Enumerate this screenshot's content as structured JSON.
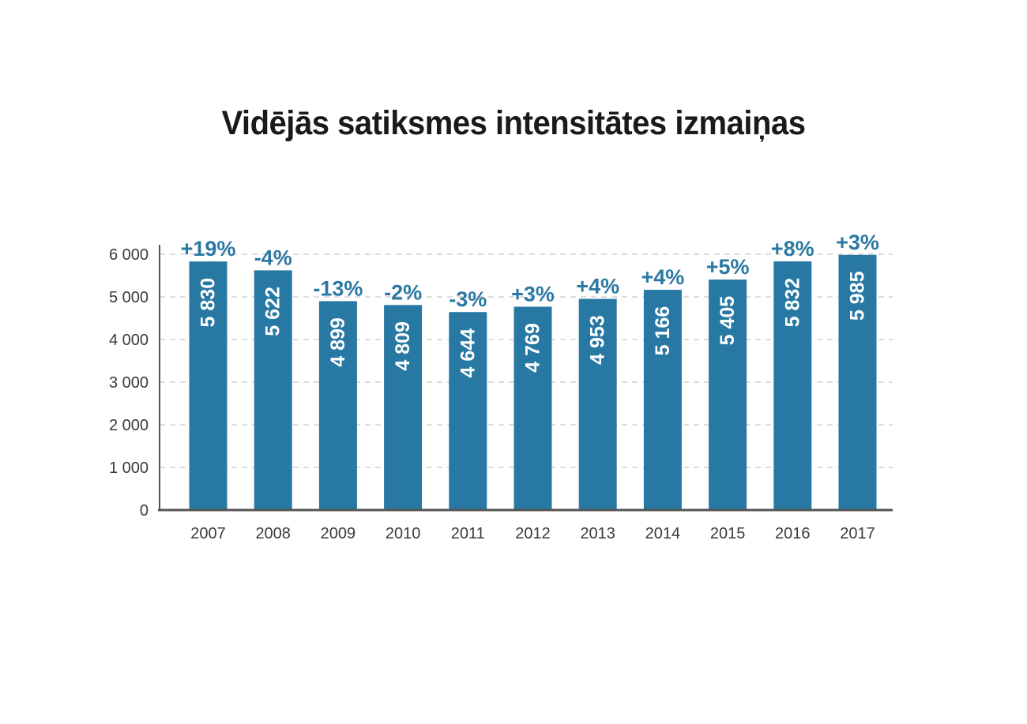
{
  "chart_data": {
    "type": "bar",
    "title": "Vidējās satiksmes intensitātes izmaiņas",
    "xlabel": "",
    "ylabel": "",
    "categories": [
      "2007",
      "2008",
      "2009",
      "2010",
      "2011",
      "2012",
      "2013",
      "2014",
      "2015",
      "2016",
      "2017"
    ],
    "values": [
      5830,
      5622,
      4899,
      4809,
      4644,
      4769,
      4953,
      5166,
      5405,
      5832,
      5985
    ],
    "value_labels": [
      "5 830",
      "5 622",
      "4 899",
      "4 809",
      "4 644",
      "4 769",
      "4 953",
      "5 166",
      "5 405",
      "5 832",
      "5 985"
    ],
    "change_labels": [
      "+19%",
      "-4%",
      "-13%",
      "-2%",
      "-3%",
      "+3%",
      "+4%",
      "+4%",
      "+5%",
      "+8%",
      "+3%"
    ],
    "ylim": [
      0,
      6000
    ],
    "yticks": [
      0,
      1000,
      2000,
      3000,
      4000,
      5000,
      6000
    ],
    "ytick_labels": [
      "0",
      "1 000",
      "2 000",
      "3 000",
      "4 000",
      "5 000",
      "6 000"
    ],
    "grid": true,
    "legend": "none",
    "colors": {
      "bar": "#2778a2",
      "change_label": "#2b78a3",
      "axis": "#555555",
      "grid": "#bbbbbb"
    }
  }
}
